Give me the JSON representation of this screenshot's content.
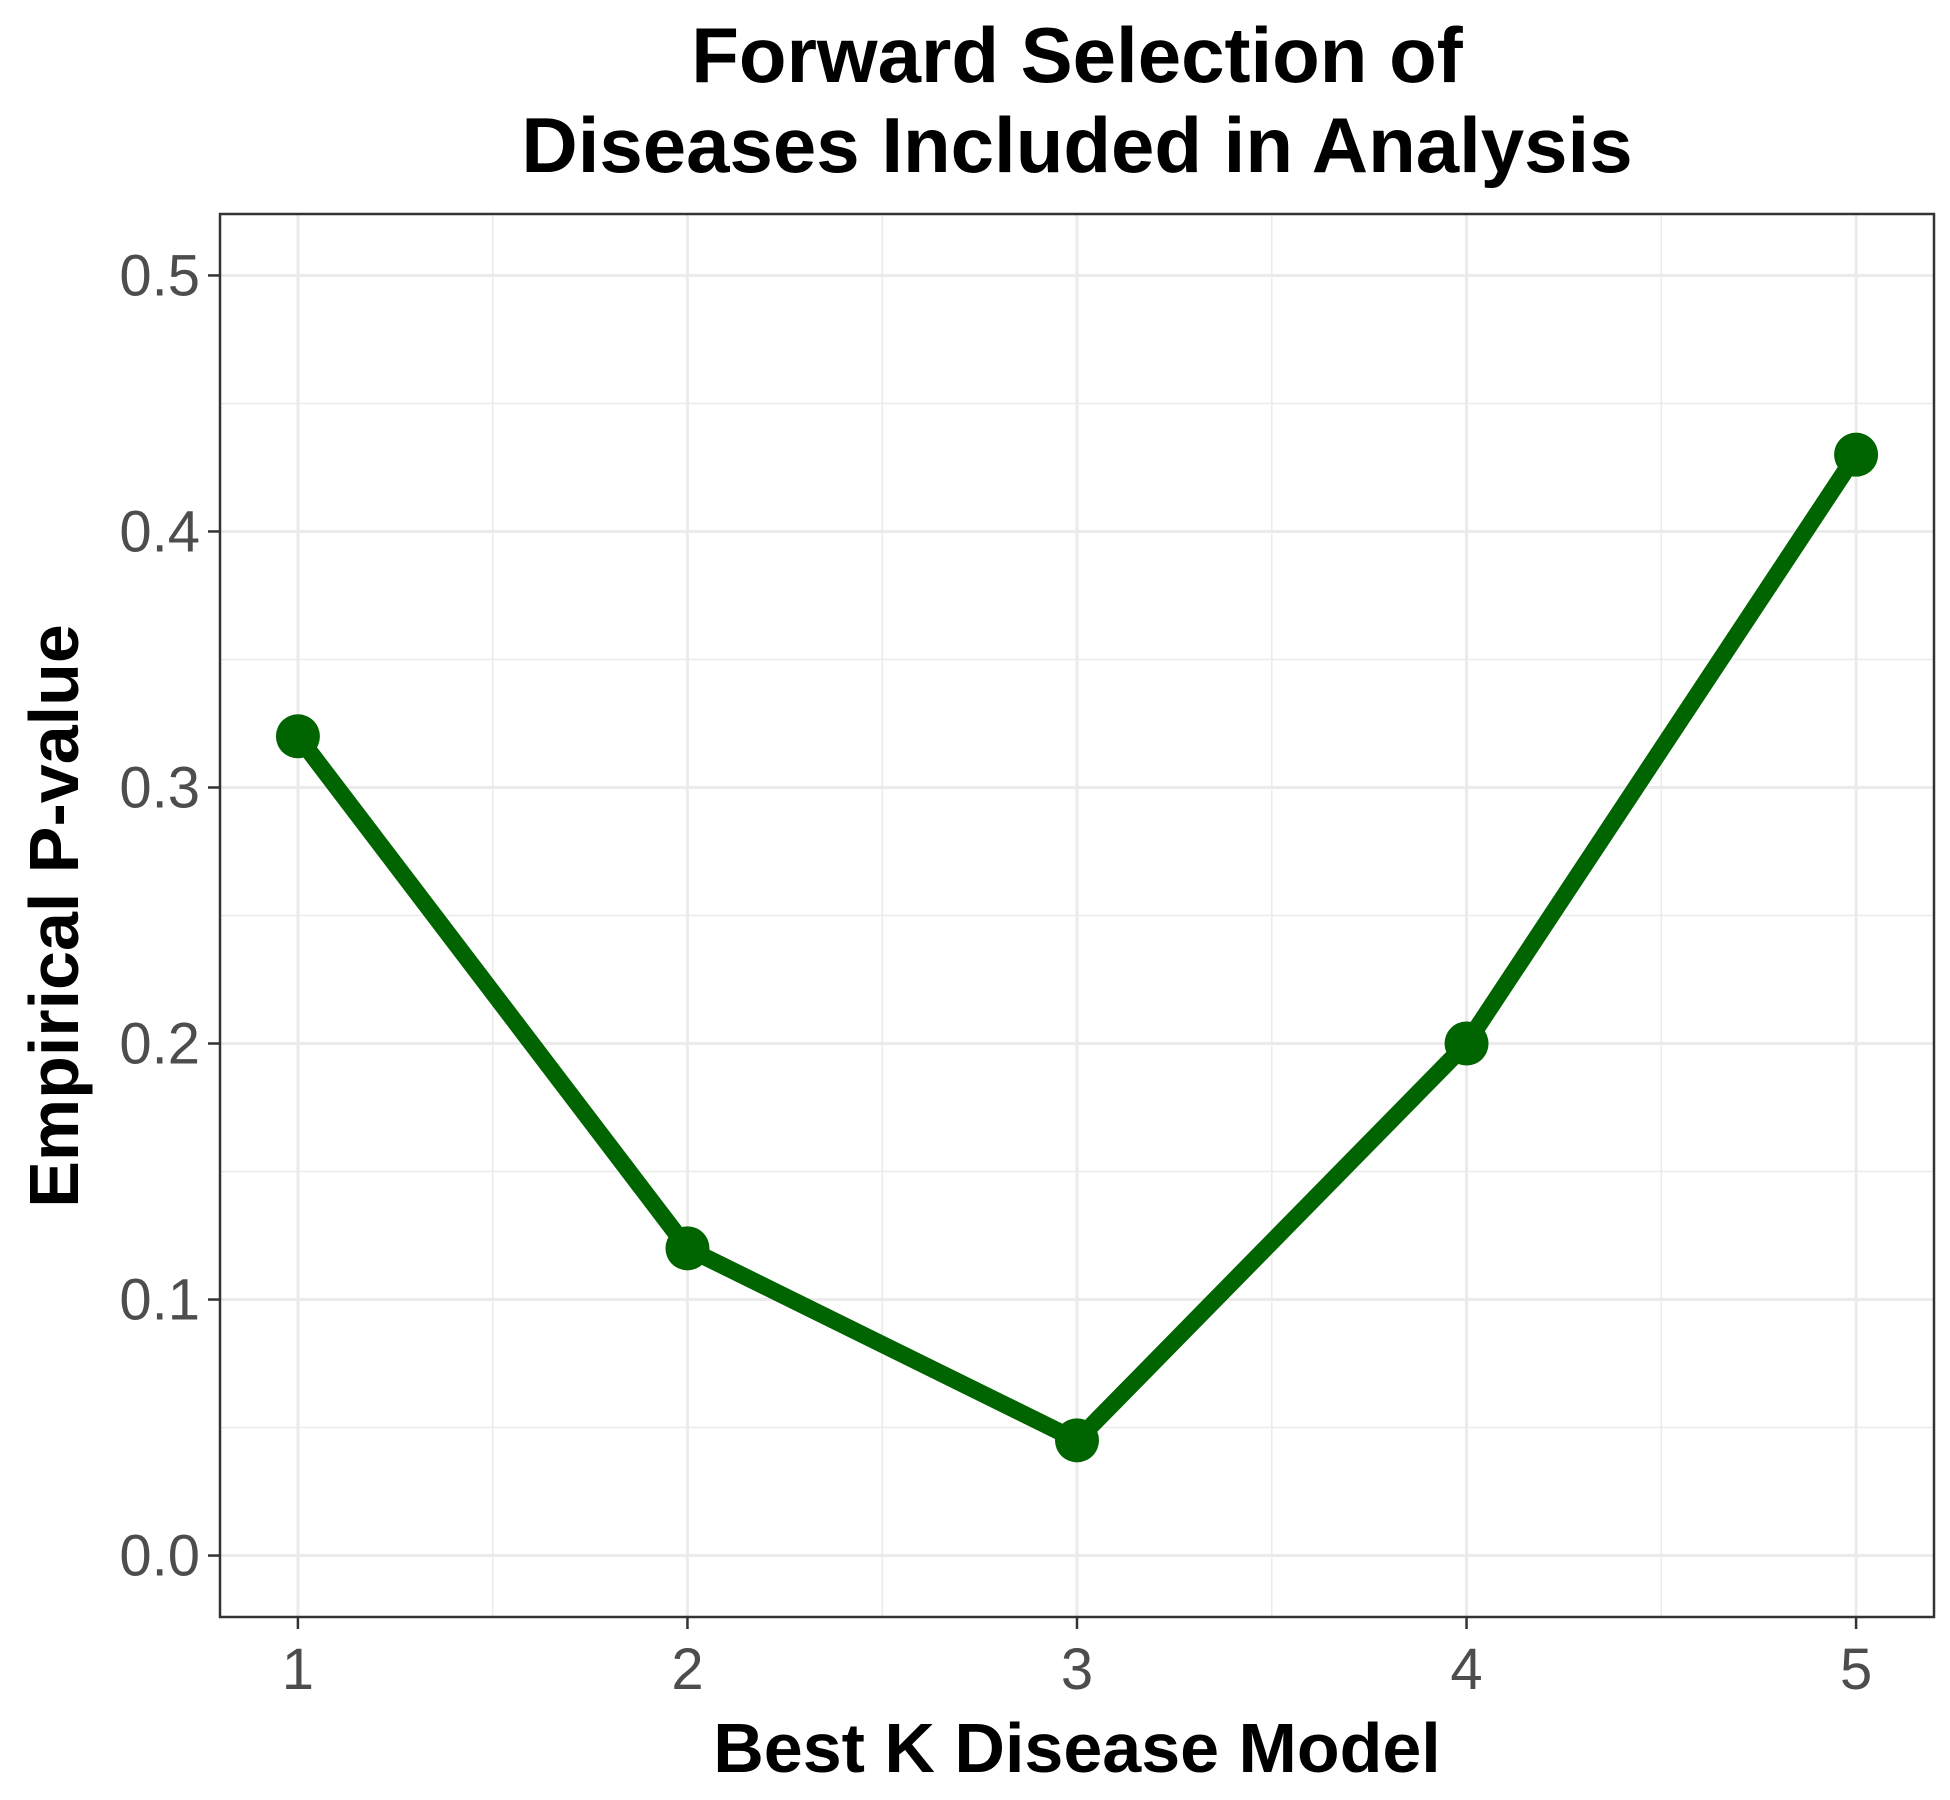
{
  "chart_data": {
    "type": "line",
    "title_lines": [
      "Forward Selection of",
      "Diseases Included in Analysis"
    ],
    "xlabel": "Best K Disease Model",
    "ylabel": "Empirical P-value",
    "x": [
      1,
      2,
      3,
      4,
      5
    ],
    "series": [
      {
        "values": [
          0.32,
          0.12,
          0.045,
          0.2,
          0.43
        ]
      }
    ],
    "x_ticks": [
      1,
      2,
      3,
      4,
      5
    ],
    "x_tick_labels": [
      "1",
      "2",
      "3",
      "4",
      "5"
    ],
    "y_ticks": [
      0.0,
      0.1,
      0.2,
      0.3,
      0.4,
      0.5
    ],
    "y_tick_labels": [
      "0.0",
      "0.1",
      "0.2",
      "0.3",
      "0.4",
      "0.5"
    ],
    "xlim": [
      0.8,
      5.2
    ],
    "ylim": [
      -0.024,
      0.524
    ],
    "grid": true,
    "line_color": "#006400",
    "point_color": "#006400",
    "panel_border_color": "#333333",
    "grid_color": "#ebebeb"
  }
}
